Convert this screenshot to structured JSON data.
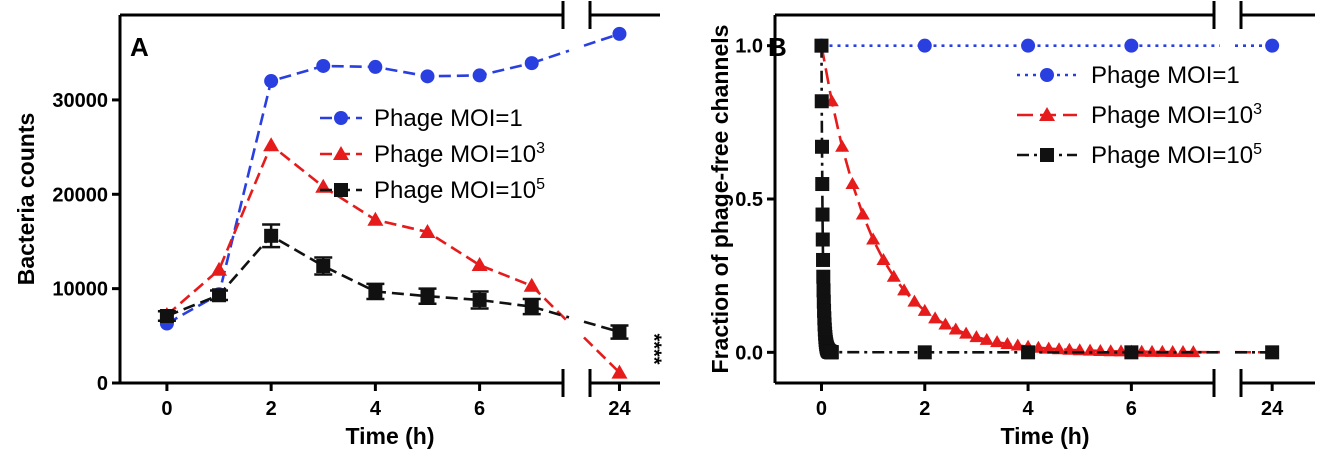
{
  "chart_data": [
    {
      "type": "line",
      "panel_label": "A",
      "xlabel": "Time (h)",
      "ylabel": "Bacteria counts",
      "ylim": [
        0,
        39000
      ],
      "xlim_main": [
        -0.9,
        7.6
      ],
      "xlim_break": [
        23.2,
        25.1
      ],
      "x_ticks": [
        0,
        2,
        4,
        6,
        24
      ],
      "y_ticks": [
        0,
        10000,
        20000,
        30000
      ],
      "annotation": "****",
      "series": [
        {
          "name_main": "Phage MOI=1",
          "name_sup": "",
          "color": "#2a3fe0",
          "marker": "circle",
          "dash": "dashed",
          "x": [
            0,
            1,
            2,
            3,
            4,
            5,
            6,
            7,
            24
          ],
          "y": [
            6300,
            9400,
            32000,
            33600,
            33500,
            32500,
            32600,
            33900,
            37000
          ],
          "err": [
            0,
            0,
            0,
            0,
            0,
            0,
            0,
            0,
            0
          ]
        },
        {
          "name_main": "Phage MOI=10",
          "name_sup": "3",
          "color": "#e61b1b",
          "marker": "triangle",
          "dash": "dashed",
          "x": [
            0,
            1,
            2,
            3,
            4,
            5,
            6,
            7,
            24
          ],
          "y": [
            7200,
            12000,
            25200,
            20800,
            17300,
            16000,
            12500,
            10300,
            1100
          ],
          "err": [
            0,
            0,
            0,
            0,
            0,
            0,
            0,
            0,
            0
          ]
        },
        {
          "name_main": "Phage MOI=10",
          "name_sup": "5",
          "color": "#111111",
          "marker": "square",
          "dash": "dashed",
          "x": [
            0,
            1,
            2,
            3,
            4,
            5,
            6,
            7,
            24
          ],
          "y": [
            7100,
            9300,
            15600,
            12400,
            9700,
            9200,
            8800,
            8100,
            5400
          ],
          "err": [
            500,
            500,
            1200,
            900,
            800,
            800,
            900,
            800,
            700
          ]
        }
      ]
    },
    {
      "type": "line",
      "panel_label": "B",
      "xlabel": "Time (h)",
      "ylabel": "Fraction of phage-free channels",
      "ylim": [
        -0.1,
        1.1
      ],
      "xlim_main": [
        -0.9,
        7.6
      ],
      "xlim_break": [
        23.2,
        25.1
      ],
      "x_ticks": [
        0,
        2,
        4,
        6,
        24
      ],
      "y_ticks": [
        0.0,
        0.5,
        1.0
      ],
      "y_tick_labels": [
        "0.0",
        "0.5",
        "1.0"
      ],
      "series": [
        {
          "name_main": "Phage MOI=1",
          "name_sup": "",
          "color": "#2a3fe0",
          "marker": "circle",
          "dash": "dotted",
          "model": "constant",
          "value": 1.0,
          "marker_x": [
            0,
            2,
            4,
            6,
            24
          ]
        },
        {
          "name_main": "Phage MOI=10",
          "name_sup": "3",
          "color": "#e61b1b",
          "marker": "triangle",
          "dash": "longdash",
          "model": "exp",
          "rate_per_h": 1.0,
          "marker_x_start": 0,
          "marker_x_step": 0.2,
          "marker_x_end": 7.2,
          "marker_x_extra": [
            24
          ]
        },
        {
          "name_main": "Phage MOI=10",
          "name_sup": "5",
          "color": "#111111",
          "marker": "square",
          "dash": "dashdot",
          "model": "exp",
          "rate_per_h": 40.0,
          "marker_x_dense_step": 0.005,
          "marker_x_dense_end": 0.2,
          "marker_x": [
            2,
            4,
            6,
            24
          ]
        }
      ]
    }
  ]
}
